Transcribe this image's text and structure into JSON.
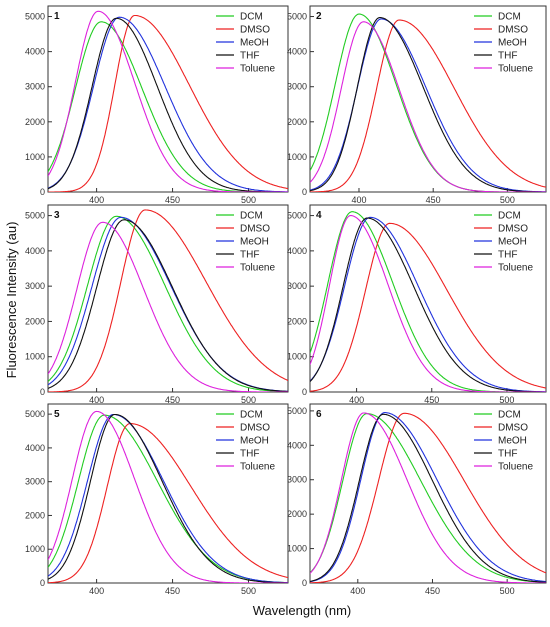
{
  "figure": {
    "xlabel": "Wavelength (nm)",
    "ylabel": "Fluorescence Intensity (au)"
  },
  "colors": {
    "DCM": "#22cc22",
    "DMSO": "#ee2222",
    "MeOH": "#2233dd",
    "THF": "#111111",
    "Toluene": "#dd22dd"
  },
  "chart_data": [
    {
      "type": "line",
      "panel": "1",
      "xlim": [
        368,
        526
      ],
      "ylim": [
        0,
        5300
      ],
      "xticks": [
        400,
        450,
        500
      ],
      "yticks": [
        0,
        1000,
        2000,
        3000,
        4000,
        5000
      ],
      "legend": "top-right",
      "series": [
        {
          "name": "DCM",
          "peak": 403,
          "height": 4850,
          "wl": 17,
          "wr": 27
        },
        {
          "name": "DMSO",
          "peak": 425,
          "height": 5030,
          "wl": 13,
          "wr": 36
        },
        {
          "name": "MeOH",
          "peak": 415,
          "height": 4980,
          "wl": 17,
          "wr": 30
        },
        {
          "name": "THF",
          "peak": 413,
          "height": 4950,
          "wl": 16,
          "wr": 27
        },
        {
          "name": "Toluene",
          "peak": 401,
          "height": 5150,
          "wl": 15,
          "wr": 24
        }
      ]
    },
    {
      "type": "line",
      "panel": "2",
      "xlim": [
        367,
        526
      ],
      "ylim": [
        0,
        5300
      ],
      "xticks": [
        400,
        450,
        500
      ],
      "yticks": [
        0,
        1000,
        2000,
        3000,
        4000,
        5000
      ],
      "legend": "top-right",
      "series": [
        {
          "name": "DCM",
          "peak": 400,
          "height": 5070,
          "wl": 16,
          "wr": 25
        },
        {
          "name": "DMSO",
          "peak": 427,
          "height": 4900,
          "wl": 15,
          "wr": 37
        },
        {
          "name": "MeOH",
          "peak": 415,
          "height": 4930,
          "wl": 16,
          "wr": 30
        },
        {
          "name": "THF",
          "peak": 414,
          "height": 4970,
          "wl": 15,
          "wr": 29
        },
        {
          "name": "Toluene",
          "peak": 403,
          "height": 4850,
          "wl": 15,
          "wr": 24
        }
      ]
    },
    {
      "type": "line",
      "panel": "3",
      "xlim": [
        368,
        526
      ],
      "ylim": [
        0,
        5300
      ],
      "xticks": [
        400,
        450,
        500
      ],
      "yticks": [
        0,
        1000,
        2000,
        3000,
        4000,
        5000
      ],
      "legend": "top-right",
      "series": [
        {
          "name": "DCM",
          "peak": 413,
          "height": 4980,
          "wl": 19,
          "wr": 32
        },
        {
          "name": "DMSO",
          "peak": 432,
          "height": 5160,
          "wl": 16,
          "wr": 40
        },
        {
          "name": "MeOH",
          "peak": 416,
          "height": 4950,
          "wl": 19,
          "wr": 33
        },
        {
          "name": "THF",
          "peak": 418,
          "height": 4880,
          "wl": 18,
          "wr": 32
        },
        {
          "name": "Toluene",
          "peak": 404,
          "height": 4810,
          "wl": 17,
          "wr": 27
        }
      ]
    },
    {
      "type": "line",
      "panel": "4",
      "xlim": [
        369,
        526
      ],
      "ylim": [
        0,
        5300
      ],
      "xticks": [
        400,
        450,
        500
      ],
      "yticks": [
        0,
        1000,
        2000,
        3000,
        4000,
        5000
      ],
      "legend": "top-right",
      "series": [
        {
          "name": "DCM",
          "peak": 397,
          "height": 5110,
          "wl": 16,
          "wr": 27
        },
        {
          "name": "DMSO",
          "peak": 422,
          "height": 4780,
          "wl": 16,
          "wr": 38
        },
        {
          "name": "MeOH",
          "peak": 409,
          "height": 4950,
          "wl": 17,
          "wr": 32
        },
        {
          "name": "THF",
          "peak": 407,
          "height": 4930,
          "wl": 16,
          "wr": 31
        },
        {
          "name": "Toluene",
          "peak": 396,
          "height": 5000,
          "wl": 14,
          "wr": 25
        }
      ]
    },
    {
      "type": "line",
      "panel": "5",
      "xlim": [
        368,
        526
      ],
      "ylim": [
        0,
        5300
      ],
      "xticks": [
        400,
        450,
        500
      ],
      "yticks": [
        0,
        1000,
        2000,
        3000,
        4000,
        5000
      ],
      "legend": "top-right",
      "series": [
        {
          "name": "DCM",
          "peak": 405,
          "height": 4970,
          "wl": 17,
          "wr": 35
        },
        {
          "name": "DMSO",
          "peak": 422,
          "height": 4720,
          "wl": 15,
          "wr": 40
        },
        {
          "name": "MeOH",
          "peak": 411,
          "height": 4990,
          "wl": 17,
          "wr": 33
        },
        {
          "name": "THF",
          "peak": 412,
          "height": 4990,
          "wl": 16,
          "wr": 31
        },
        {
          "name": "Toluene",
          "peak": 400,
          "height": 5080,
          "wl": 16,
          "wr": 25
        }
      ]
    },
    {
      "type": "line",
      "panel": "6",
      "xlim": [
        368,
        526
      ],
      "ylim": [
        0,
        5200
      ],
      "xticks": [
        400,
        450,
        500
      ],
      "yticks": [
        0,
        1000,
        2000,
        3000,
        4000,
        5000
      ],
      "legend": "top-right",
      "series": [
        {
          "name": "DCM",
          "peak": 406,
          "height": 4920,
          "wl": 16,
          "wr": 36
        },
        {
          "name": "DMSO",
          "peak": 431,
          "height": 4930,
          "wl": 17,
          "wr": 40
        },
        {
          "name": "MeOH",
          "peak": 418,
          "height": 4950,
          "wl": 16,
          "wr": 35
        },
        {
          "name": "THF",
          "peak": 417,
          "height": 4900,
          "wl": 16,
          "wr": 33
        },
        {
          "name": "Toluene",
          "peak": 404,
          "height": 4940,
          "wl": 15,
          "wr": 29
        }
      ]
    }
  ]
}
